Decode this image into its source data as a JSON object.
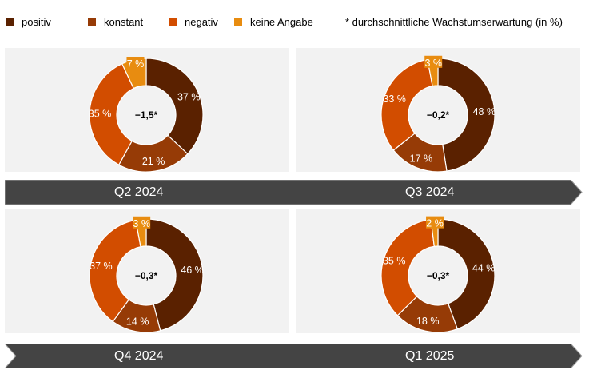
{
  "legend": {
    "items": [
      {
        "label": "positiv",
        "color": "#5a2100"
      },
      {
        "label": "konstant",
        "color": "#963b06"
      },
      {
        "label": "negativ",
        "color": "#d24d00"
      },
      {
        "label": "keine Angabe",
        "color": "#e88c10"
      }
    ],
    "note": "* durchschnittliche Wachstumserwartung (in %)"
  },
  "timeline": {
    "top": {
      "left": "Q2 2024",
      "right": "Q3 2024"
    },
    "bottom": {
      "left": "Q4 2024",
      "right": "Q1 2025"
    }
  },
  "chart_data": [
    {
      "type": "pie",
      "title": "Q2 2024",
      "center_label": "−1,5*",
      "categories": [
        "positiv",
        "konstant",
        "negativ",
        "keine Angabe"
      ],
      "values": [
        37,
        21,
        35,
        7
      ],
      "labels": [
        "37 %",
        "21 %",
        "35 %",
        "7 %"
      ],
      "unit": "%",
      "donut": true
    },
    {
      "type": "pie",
      "title": "Q3 2024",
      "center_label": "−0,2*",
      "categories": [
        "positiv",
        "konstant",
        "negativ",
        "keine Angabe"
      ],
      "values": [
        48,
        17,
        33,
        3
      ],
      "labels": [
        "48 %",
        "17 %",
        "33 %",
        "3 %"
      ],
      "unit": "%",
      "donut": true
    },
    {
      "type": "pie",
      "title": "Q4 2024",
      "center_label": "−0,3*",
      "categories": [
        "positiv",
        "konstant",
        "negativ",
        "keine Angabe"
      ],
      "values": [
        46,
        14,
        37,
        3
      ],
      "labels": [
        "46 %",
        "14 %",
        "37 %",
        "3 %"
      ],
      "unit": "%",
      "donut": true
    },
    {
      "type": "pie",
      "title": "Q1 2025",
      "center_label": "−0,3*",
      "categories": [
        "positiv",
        "konstant",
        "negativ",
        "keine Angabe"
      ],
      "values": [
        44,
        18,
        35,
        2
      ],
      "labels": [
        "44 %",
        "18 %",
        "35 %",
        "2 %"
      ],
      "unit": "%",
      "donut": true
    }
  ],
  "colors": {
    "panel_bg": "#f2f2f2",
    "arrow_bg": "#444444",
    "arrow_border": "#9a9a9a",
    "center_text": "#000000",
    "segment_text": "#ffffff"
  }
}
